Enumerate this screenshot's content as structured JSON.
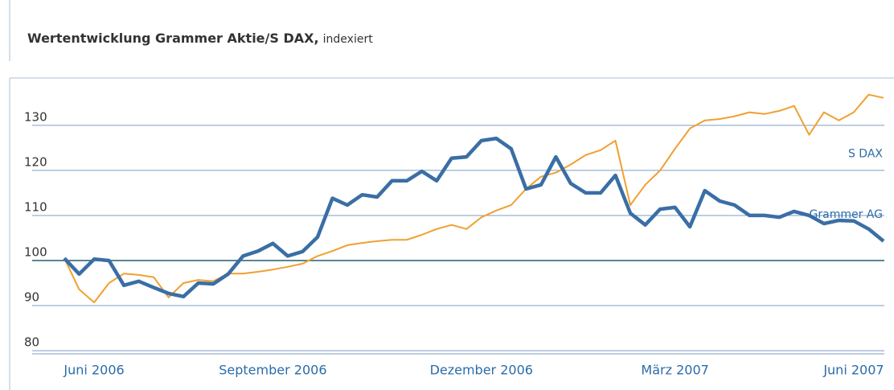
{
  "chart_data": {
    "type": "line",
    "title": "Wertentwicklung Grammer Aktie/S DAX,",
    "subtitle": "indexiert",
    "categories": [
      null,
      null,
      "Juni 2006",
      null,
      null,
      null,
      null,
      null,
      null,
      null,
      null,
      null,
      null,
      null,
      "September 2006",
      null,
      null,
      null,
      null,
      null,
      null,
      null,
      null,
      null,
      null,
      null,
      null,
      null,
      "Dezember 2006",
      null,
      null,
      null,
      null,
      null,
      null,
      null,
      null,
      null,
      null,
      null,
      null,
      "März 2007",
      null,
      null,
      null,
      null,
      null,
      null,
      null,
      null,
      null,
      null,
      null,
      "Juni 2007",
      null,
      null
    ],
    "series": [
      {
        "name": "S DAX",
        "color": "#f0a030",
        "width": 2,
        "values": [
          100.5,
          93.6,
          90.7,
          95,
          97.1,
          96.8,
          96.3,
          91.8,
          95,
          95.7,
          95.4,
          97.1,
          97.1,
          97.5,
          98,
          98.6,
          99.3,
          101,
          102.1,
          103.4,
          103.9,
          104.3,
          104.6,
          104.6,
          105.7,
          107,
          107.9,
          107,
          109.6,
          111.1,
          112.3,
          115.9,
          118.6,
          119.5,
          121.3,
          123.4,
          124.5,
          126.6,
          112.3,
          116.8,
          120,
          124.8,
          129.3,
          131.1,
          131.4,
          132,
          132.9,
          132.5,
          133.2,
          134.3,
          127.9,
          132.9,
          131.1,
          132.9,
          136.8,
          136.1
        ]
      },
      {
        "name": "Grammer AG",
        "color": "#3a6ea5",
        "width": 4.5,
        "values": [
          100.5,
          97,
          100.3,
          100,
          94.5,
          95.4,
          94,
          92.7,
          92,
          95,
          94.8,
          97,
          101,
          102.1,
          103.8,
          101,
          102,
          105.2,
          113.8,
          112.3,
          114.6,
          114.1,
          117.7,
          117.7,
          119.8,
          117.7,
          122.7,
          123,
          126.6,
          127.1,
          124.8,
          115.9,
          116.8,
          123,
          117.1,
          115,
          115,
          118.9,
          110.5,
          107.9,
          111.4,
          111.8,
          107.5,
          115.5,
          113.2,
          112.3,
          110,
          110,
          109.6,
          110.9,
          110,
          108.2,
          108.9,
          108.8,
          107,
          104.3
        ]
      }
    ],
    "ylim": [
      79.3,
      140.5
    ],
    "yticks": [
      80,
      90,
      100,
      110,
      120,
      130
    ],
    "grid": true,
    "grid_color": "#7b9fc4",
    "baseline": 100,
    "baseline_color": "#1f5f6e",
    "axis_label_color": "#2a6ca8"
  }
}
